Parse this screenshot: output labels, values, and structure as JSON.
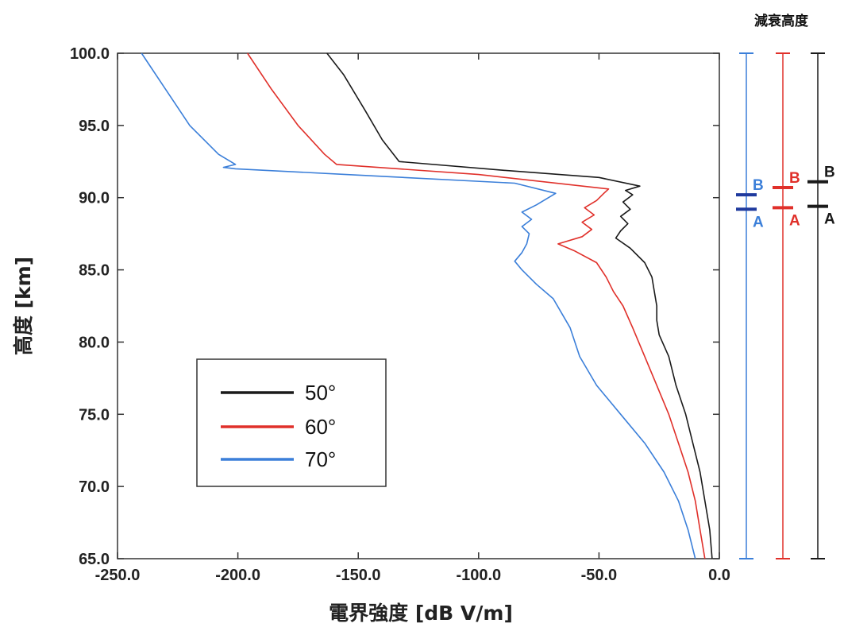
{
  "chart_data": {
    "type": "line",
    "xlabel": "電界強度 [dB V/m]",
    "ylabel": "高度 [km]",
    "xlim": [
      -250,
      0
    ],
    "ylim": [
      65,
      100
    ],
    "xticks": [
      "-250.0",
      "-200.0",
      "-150.0",
      "-100.0",
      "-50.0",
      "0.0"
    ],
    "yticks": [
      "65.0",
      "70.0",
      "75.0",
      "80.0",
      "85.0",
      "90.0",
      "95.0",
      "100.0"
    ],
    "legend_position": "lower-left",
    "series": [
      {
        "name": "50°",
        "color": "#1a1a1a",
        "points": [
          [
            -3,
            65
          ],
          [
            -4,
            67
          ],
          [
            -6,
            69
          ],
          [
            -8,
            71
          ],
          [
            -11,
            73
          ],
          [
            -14,
            75
          ],
          [
            -18,
            77
          ],
          [
            -21,
            79
          ],
          [
            -25,
            80.5
          ],
          [
            -26,
            81.5
          ],
          [
            -26,
            82.5
          ],
          [
            -27,
            83.5
          ],
          [
            -28,
            84.5
          ],
          [
            -31,
            85.5
          ],
          [
            -37,
            86.5
          ],
          [
            -43,
            87.2
          ],
          [
            -41,
            87.7
          ],
          [
            -38,
            88.2
          ],
          [
            -41,
            88.7
          ],
          [
            -37,
            89.2
          ],
          [
            -40,
            89.7
          ],
          [
            -36,
            90.2
          ],
          [
            -39,
            90.5
          ],
          [
            -33,
            90.8
          ],
          [
            -50,
            91.4
          ],
          [
            -90,
            91.9
          ],
          [
            -133,
            92.5
          ],
          [
            -140,
            94
          ],
          [
            -147,
            96
          ],
          [
            -156,
            98.5
          ],
          [
            -163,
            100
          ]
        ]
      },
      {
        "name": "60°",
        "color": "#e0302a",
        "points": [
          [
            -6,
            65
          ],
          [
            -8,
            67
          ],
          [
            -10,
            69
          ],
          [
            -13,
            71
          ],
          [
            -17,
            73
          ],
          [
            -21,
            75
          ],
          [
            -26,
            77
          ],
          [
            -31,
            79
          ],
          [
            -36,
            81
          ],
          [
            -40,
            82.5
          ],
          [
            -44,
            83.5
          ],
          [
            -47,
            84.5
          ],
          [
            -51,
            85.5
          ],
          [
            -60,
            86.3
          ],
          [
            -67,
            86.8
          ],
          [
            -57,
            87.3
          ],
          [
            -53,
            87.8
          ],
          [
            -57,
            88.3
          ],
          [
            -52,
            88.8
          ],
          [
            -56,
            89.3
          ],
          [
            -51,
            89.8
          ],
          [
            -48,
            90.3
          ],
          [
            -46,
            90.6
          ],
          [
            -100,
            91.6
          ],
          [
            -159,
            92.3
          ],
          [
            -164,
            93
          ],
          [
            -175,
            95
          ],
          [
            -186,
            97.5
          ],
          [
            -196,
            100
          ]
        ]
      },
      {
        "name": "70°",
        "color": "#3b7fd9",
        "points": [
          [
            -10,
            65
          ],
          [
            -13,
            67
          ],
          [
            -17,
            69
          ],
          [
            -23,
            71
          ],
          [
            -31,
            73
          ],
          [
            -41,
            75
          ],
          [
            -51,
            77
          ],
          [
            -58,
            79
          ],
          [
            -62,
            81
          ],
          [
            -69,
            83
          ],
          [
            -76,
            84
          ],
          [
            -82,
            85
          ],
          [
            -85,
            85.6
          ],
          [
            -82,
            86.2
          ],
          [
            -80,
            86.8
          ],
          [
            -79,
            87.5
          ],
          [
            -82,
            88
          ],
          [
            -78,
            88.5
          ],
          [
            -82,
            89
          ],
          [
            -76,
            89.5
          ],
          [
            -68,
            90.3
          ],
          [
            -85,
            91
          ],
          [
            -155,
            91.6
          ],
          [
            -201,
            92
          ],
          [
            -206,
            92.1
          ],
          [
            -201,
            92.3
          ],
          [
            -208,
            93
          ],
          [
            -220,
            95
          ],
          [
            -230,
            97.5
          ],
          [
            -240,
            100
          ]
        ]
      }
    ]
  },
  "panel": {
    "title": "減衰高度",
    "bars": [
      {
        "color": "#3b7fd9",
        "mark_color": "#1f3a9e",
        "B": 90.2,
        "A": 89.2,
        "label_B": "B",
        "label_A": "A"
      },
      {
        "color": "#e0302a",
        "mark_color": "#e0302a",
        "B": 90.7,
        "A": 89.3,
        "label_B": "B",
        "label_A": "A"
      },
      {
        "color": "#1a1a1a",
        "mark_color": "#1a1a1a",
        "B": 91.1,
        "A": 89.4,
        "label_B": "B",
        "label_A": "A"
      }
    ]
  }
}
